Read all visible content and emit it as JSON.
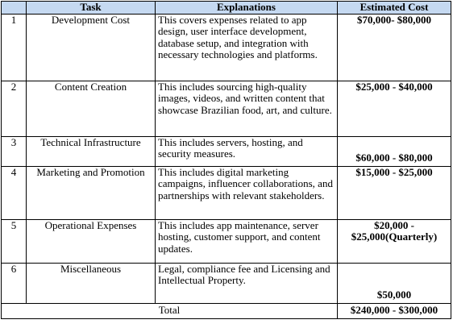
{
  "table": {
    "headers": {
      "num": "",
      "task": "Task",
      "explanations": "Explanations",
      "estimated_cost": "Estimated Cost"
    },
    "rows": [
      {
        "num": "1",
        "task": "Development Cost",
        "explanation": "This covers expenses related to app design, user interface development, database setup, and integration with necessary technologies and platforms.",
        "cost": "$70,000- $80,000"
      },
      {
        "num": "2",
        "task": "Content Creation",
        "explanation": "This includes sourcing high-quality images, videos, and written content that showcase Brazilian food, art, and culture.",
        "cost": "$25,000 - $40,000"
      },
      {
        "num": "3",
        "task": "Technical Infrastructure",
        "explanation": "This includes servers, hosting, and security measures.",
        "cost": "$60,000 - $80,000"
      },
      {
        "num": "4",
        "task": "Marketing and Promotion",
        "explanation": "This includes digital marketing campaigns, influencer collaborations, and partnerships with relevant stakeholders.",
        "cost": "$15,000 - $25,000"
      },
      {
        "num": "5",
        "task": "Operational Expenses",
        "explanation": "This includes app maintenance, server hosting, customer support, and content updates.",
        "cost_line1": "$20,000 -",
        "cost_line2": "$25,000(Quarterly)"
      },
      {
        "num": "6",
        "task": "Miscellaneous",
        "explanation": "Legal, compliance fee and Licensing and Intellectual Property.",
        "cost": "$50,000"
      }
    ],
    "total": {
      "label": "Total",
      "cost": "$240,000 - $300,000"
    },
    "colors": {
      "header_bg": "#c5d9f1",
      "border": "#000000"
    }
  }
}
